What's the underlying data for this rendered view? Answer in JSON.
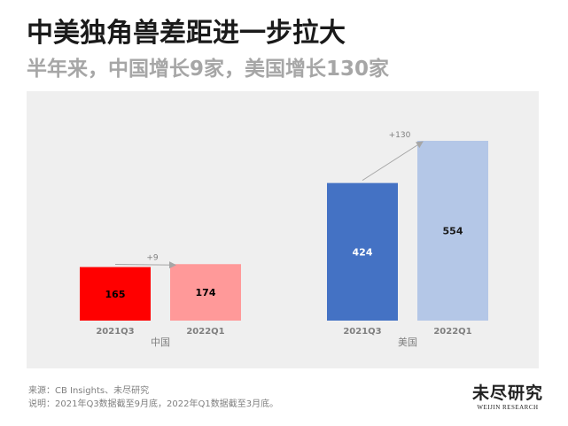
{
  "header": {
    "title": "中美独角兽差距进一步拉大",
    "subtitle": "半年来，中国增长9家，美国增长130家"
  },
  "chart_data": {
    "type": "bar",
    "groups": [
      {
        "name": "中国",
        "categories": [
          "2021Q3",
          "2022Q1"
        ],
        "values": [
          165,
          174
        ],
        "colors": [
          "#ff0000",
          "#ff9999"
        ],
        "label_colors": [
          "#000000",
          "#000000"
        ],
        "increase_label": "+9"
      },
      {
        "name": "美国",
        "categories": [
          "2021Q3",
          "2022Q1"
        ],
        "values": [
          424,
          554
        ],
        "colors": [
          "#4472c4",
          "#b4c7e7"
        ],
        "label_colors": [
          "#ffffff",
          "#1a1a1a"
        ],
        "increase_label": "+130"
      }
    ],
    "ylim": [
      0,
      554
    ],
    "grid": false,
    "legend": "none",
    "title": "",
    "xlabel": "",
    "ylabel": ""
  },
  "footer": {
    "source": "来源：CB Insights、未尽研究",
    "note": "说明：2021年Q3数据截至9月底，2022年Q1数据截至3月底。"
  },
  "logo": {
    "main": "未尽研究",
    "sub": "WEIJIN RESEARCH"
  }
}
